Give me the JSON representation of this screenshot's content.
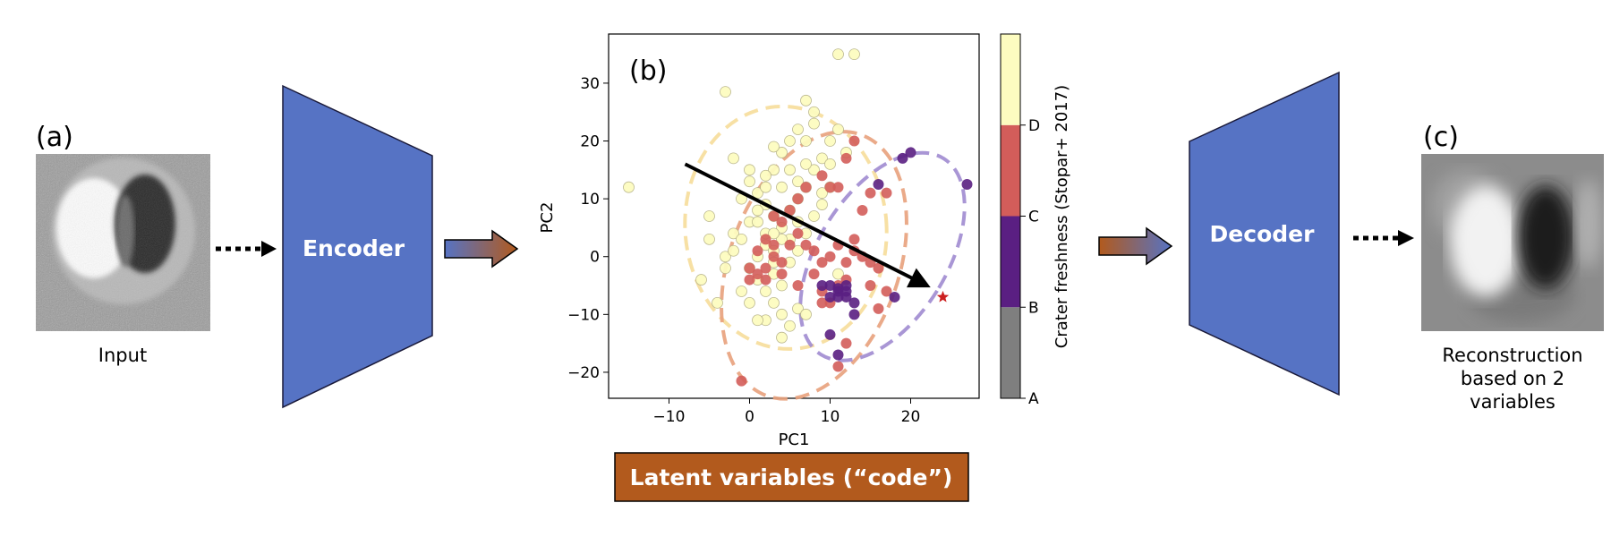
{
  "panels": {
    "a": "(a)",
    "b": "(b)",
    "c": "(c)"
  },
  "captions": {
    "input": "Input",
    "reconstruction": [
      "Reconstruction",
      "based on 2",
      "variables"
    ]
  },
  "encoder_label": "Encoder",
  "decoder_label": "Decoder",
  "code_label": "Latent variables (“code”)",
  "colors": {
    "block_fill": "#5673c4",
    "block_stroke": "#1a1a3a",
    "code_fill": "#b25a1d",
    "arrow_grad_start": "#5673c4",
    "arrow_grad_end": "#b25a1d",
    "class_A": "#7f7f7f",
    "class_B": "#5a1f82",
    "class_C": "#d35d5a",
    "class_D": "#fdfcc0",
    "ellipse_B": "#a08bd0",
    "ellipse_C": "#e8a17c",
    "ellipse_D": "#f6dd9a",
    "star": "#cc2020"
  },
  "chart_data": {
    "type": "scatter",
    "title": "",
    "xlabel": "PC1",
    "ylabel": "PC2",
    "xlim": [
      -17.5,
      28.5
    ],
    "ylim": [
      -24.5,
      38.5
    ],
    "x_ticks": [
      -10,
      0,
      10,
      20
    ],
    "y_ticks": [
      -20,
      -10,
      0,
      10,
      20,
      30
    ],
    "grid": false,
    "colorbar": {
      "label": "Crater freshness (Stopar+ 2017)",
      "classes": [
        "A",
        "B",
        "C",
        "D"
      ]
    },
    "series": [
      {
        "class": "D",
        "points": [
          [
            -15,
            12
          ],
          [
            -3,
            28.5
          ],
          [
            -5,
            7
          ],
          [
            -6,
            -4
          ],
          [
            -5,
            3
          ],
          [
            -4,
            -8
          ],
          [
            -3,
            0
          ],
          [
            -2,
            4
          ],
          [
            -1,
            10
          ],
          [
            0,
            13
          ],
          [
            1,
            11
          ],
          [
            2,
            9
          ],
          [
            3,
            7
          ],
          [
            4,
            5
          ],
          [
            5,
            3
          ],
          [
            6,
            10
          ],
          [
            7,
            12
          ],
          [
            8,
            15
          ],
          [
            9,
            17
          ],
          [
            10,
            20
          ],
          [
            11,
            22
          ],
          [
            12,
            18
          ],
          [
            8,
            25
          ],
          [
            7,
            27
          ],
          [
            6,
            22
          ],
          [
            5,
            20
          ],
          [
            4,
            18
          ],
          [
            3,
            15
          ],
          [
            2,
            12
          ],
          [
            1,
            8
          ],
          [
            0,
            6
          ],
          [
            -1,
            3
          ],
          [
            -2,
            1
          ],
          [
            -3,
            -2
          ],
          [
            0,
            -2
          ],
          [
            1,
            -4
          ],
          [
            2,
            -6
          ],
          [
            3,
            -8
          ],
          [
            4,
            -10
          ],
          [
            5,
            -12
          ],
          [
            6,
            -9
          ],
          [
            4,
            -5
          ],
          [
            3,
            -3
          ],
          [
            5,
            -1
          ],
          [
            6,
            1
          ],
          [
            7,
            4
          ],
          [
            8,
            7
          ],
          [
            9,
            9
          ],
          [
            10,
            12
          ],
          [
            11,
            -3
          ],
          [
            2,
            2
          ],
          [
            3,
            1
          ],
          [
            4,
            3
          ],
          [
            1,
            0
          ],
          [
            6,
            13
          ],
          [
            5,
            15
          ],
          [
            3,
            19
          ],
          [
            7,
            20
          ],
          [
            8,
            23
          ],
          [
            -2,
            17
          ],
          [
            0,
            15
          ],
          [
            2,
            -11
          ],
          [
            4,
            -14
          ],
          [
            7,
            -10
          ],
          [
            5,
            8
          ],
          [
            4,
            12
          ],
          [
            2,
            4
          ],
          [
            1,
            6
          ],
          [
            6,
            6
          ],
          [
            3,
            -1
          ],
          [
            7,
            16
          ],
          [
            9,
            11
          ],
          [
            10,
            16
          ],
          [
            11,
            35
          ],
          [
            13,
            35
          ],
          [
            0,
            -8
          ],
          [
            1,
            -11
          ],
          [
            -1,
            -6
          ],
          [
            3,
            4
          ],
          [
            2,
            14
          ]
        ]
      },
      {
        "class": "C",
        "points": [
          [
            -1,
            -21.5
          ],
          [
            0,
            -4
          ],
          [
            1,
            -3
          ],
          [
            2,
            -2
          ],
          [
            1,
            1
          ],
          [
            2,
            3
          ],
          [
            3,
            2
          ],
          [
            4,
            6
          ],
          [
            5,
            8
          ],
          [
            6,
            10
          ],
          [
            7,
            12
          ],
          [
            8,
            -3
          ],
          [
            9,
            -6
          ],
          [
            10,
            -8
          ],
          [
            11,
            -5
          ],
          [
            12,
            -4
          ],
          [
            13,
            1
          ],
          [
            14,
            0
          ],
          [
            15,
            -1
          ],
          [
            16,
            -2
          ],
          [
            17,
            -6
          ],
          [
            16,
            -9
          ],
          [
            15,
            -5
          ],
          [
            12,
            -15
          ],
          [
            11,
            -19
          ],
          [
            13,
            3
          ],
          [
            10,
            12
          ],
          [
            9,
            14
          ],
          [
            12,
            17
          ],
          [
            13,
            20
          ],
          [
            11,
            12
          ],
          [
            9,
            -8
          ],
          [
            6,
            -5
          ],
          [
            5,
            2
          ],
          [
            4,
            -1
          ],
          [
            3,
            0
          ],
          [
            0,
            -2
          ],
          [
            7,
            2
          ],
          [
            8,
            1
          ],
          [
            10,
            0
          ],
          [
            14,
            8
          ],
          [
            15,
            11
          ],
          [
            17,
            11
          ],
          [
            6,
            4
          ],
          [
            3,
            7
          ],
          [
            4,
            -3
          ],
          [
            2,
            -4
          ],
          [
            9,
            -1
          ],
          [
            11,
            2
          ],
          [
            12,
            -1
          ]
        ]
      },
      {
        "class": "B",
        "points": [
          [
            19,
            17
          ],
          [
            20,
            18
          ],
          [
            27,
            12.5
          ],
          [
            16,
            12.5
          ],
          [
            10,
            -5
          ],
          [
            11,
            -6
          ],
          [
            12,
            -7
          ],
          [
            13,
            -8
          ],
          [
            11,
            -5.5
          ],
          [
            12,
            -6
          ],
          [
            10,
            -7
          ],
          [
            9,
            -5
          ],
          [
            10,
            -13.5
          ],
          [
            11,
            -17
          ],
          [
            13,
            -10
          ],
          [
            18,
            -7
          ],
          [
            12,
            -5
          ],
          [
            11,
            -7
          ]
        ]
      }
    ],
    "ellipses": [
      {
        "class": "D",
        "cx": 4.5,
        "cy": 5,
        "rx": 12.5,
        "ry": 21,
        "angle": -5
      },
      {
        "class": "C",
        "cx": 8,
        "cy": -1.5,
        "rx": 10.5,
        "ry": 24,
        "angle": 20
      },
      {
        "class": "B",
        "cx": 16.5,
        "cy": 0,
        "rx": 8,
        "ry": 20,
        "angle": 32
      }
    ],
    "arrow": {
      "from": [
        -8,
        16
      ],
      "to": [
        22,
        -5
      ]
    },
    "star": [
      24,
      -7
    ]
  }
}
